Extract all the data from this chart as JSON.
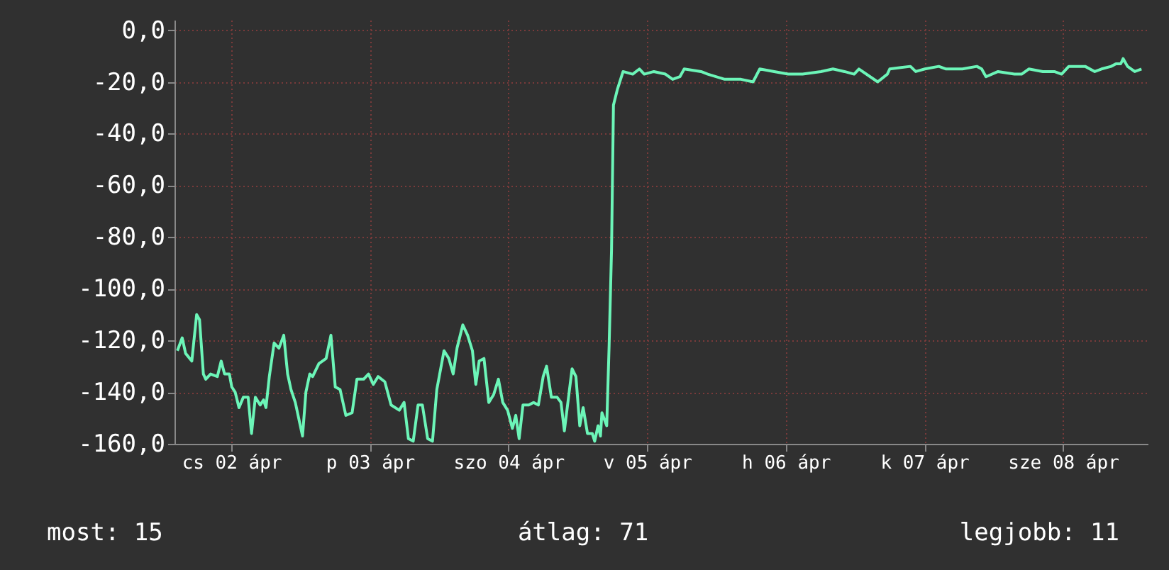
{
  "chart_data": {
    "type": "line",
    "annotations": [
      "most: 15",
      "átlag: 71",
      "legjobb: 11"
    ],
    "x": [
      "--04-02T02:40",
      "--04-02T03:30",
      "--04-02T04:05",
      "--04-02T05:10",
      "--04-02T06:00",
      "--04-02T06:30",
      "--04-02T07:10",
      "--04-02T07:35",
      "--04-02T08:25",
      "--04-02T09:35",
      "--04-02T10:15",
      "--04-02T10:50",
      "--04-02T11:40",
      "--04-02T12:05",
      "--04-02T12:40",
      "--04-02T13:20",
      "--04-02T14:05",
      "--04-02T14:55",
      "--04-02T15:30",
      "--04-02T16:10",
      "--04-02T17:00",
      "--04-02T17:35",
      "--04-02T18:00",
      "--04-02T18:35",
      "--04-02T19:25",
      "--04-02T20:15",
      "--04-02T21:05",
      "--04-02T21:45",
      "--04-02T22:20",
      "--04-02T23:05",
      "--04-03T00:20",
      "--04-03T00:55",
      "--04-03T01:35",
      "--04-03T02:05",
      "--04-03T03:10",
      "--04-03T04:25",
      "--04-03T05:15",
      "--04-03T06:00",
      "--04-03T06:50",
      "--04-03T07:50",
      "--04-03T08:55",
      "--04-03T09:45",
      "--04-03T10:55",
      "--04-03T11:45",
      "--04-03T12:35",
      "--04-03T13:25",
      "--04-03T14:35",
      "--04-03T15:40",
      "--04-03T17:05",
      "--04-03T17:55",
      "--04-03T18:40",
      "--04-03T19:30",
      "--04-03T20:20",
      "--04-03T21:05",
      "--04-03T22:00",
      "--04-03T22:50",
      "--04-03T23:35",
      "--04-04T00:50",
      "--04-04T01:40",
      "--04-04T02:25",
      "--04-04T03:05",
      "--04-04T04:05",
      "--04-04T04:55",
      "--04-04T05:45",
      "--04-04T06:20",
      "--04-04T06:55",
      "--04-04T07:45",
      "--04-04T08:35",
      "--04-04T09:25",
      "--04-04T10:15",
      "--04-04T11:00",
      "--04-04T11:50",
      "--04-04T12:40",
      "--04-04T13:15",
      "--04-04T13:50",
      "--04-04T14:30",
      "--04-04T15:30",
      "--04-04T16:20",
      "--04-04T17:10",
      "--04-04T18:00",
      "--04-04T18:35",
      "--04-04T19:25",
      "--04-04T20:25",
      "--04-04T21:05",
      "--04-04T21:40",
      "--04-04T22:30",
      "--04-04T23:00",
      "--04-04T23:40",
      "--04-05T00:20",
      "--04-05T00:55",
      "--04-05T01:40",
      "--04-05T02:30",
      "--04-05T02:55",
      "--04-05T03:30",
      "--04-05T03:55",
      "--04-05T04:10",
      "--04-05T05:00",
      "--04-05T05:25",
      "--04-05T05:50",
      "--04-05T06:10",
      "--04-05T06:50",
      "--04-05T07:50",
      "--04-05T09:30",
      "--04-05T10:40",
      "--04-05T11:30",
      "--04-05T13:10",
      "--04-05T15:10",
      "--04-05T16:25",
      "--04-05T17:40",
      "--04-05T18:25",
      "--04-05T21:20",
      "--04-05T22:30",
      "--04-06T01:25",
      "--04-06T04:15",
      "--04-06T06:20",
      "--04-06T07:30",
      "--04-06T10:00",
      "--04-06T12:25",
      "--04-06T14:55",
      "--04-06T18:05",
      "--04-06T20:10",
      "--04-06T22:10",
      "--04-06T23:50",
      "--04-07T00:40",
      "--04-07T03:55",
      "--04-07T05:35",
      "--04-07T06:00",
      "--04-07T09:35",
      "--04-07T10:30",
      "--04-07T12:05",
      "--04-07T14:30",
      "--04-07T15:45",
      "--04-07T18:35",
      "--04-07T21:05",
      "--04-07T21:55",
      "--04-07T22:40",
      "--04-08T00:45",
      "--04-08T03:35",
      "--04-08T04:50",
      "--04-08T06:05",
      "--04-08T08:30",
      "--04-08T10:30",
      "--04-08T11:45",
      "--04-08T13:00",
      "--04-08T15:00",
      "--04-08T15:50",
      "--04-08T17:30",
      "--04-08T18:40",
      "--04-08T20:20",
      "--04-08T21:10",
      "--04-08T22:00",
      "--04-08T22:25",
      "--04-08T23:10",
      "--04-09T00:25",
      "--04-09T01:35"
    ],
    "series": [
      {
        "color": "#6cf5b8",
        "values": [
          -124,
          -119,
          -125,
          -128,
          -110,
          -112,
          -133,
          -135,
          -133,
          -134,
          -128,
          -133,
          -133,
          -138,
          -140,
          -146,
          -142,
          -142,
          -156,
          -142,
          -145,
          -143,
          -146,
          -134,
          -121,
          -123,
          -118,
          -133,
          -139,
          -144,
          -157,
          -140,
          -133,
          -134,
          -129,
          -127,
          -118,
          -138,
          -139,
          -149,
          -148,
          -135,
          -135,
          -133,
          -137,
          -134,
          -136,
          -145,
          -147,
          -144,
          -158,
          -159,
          -145,
          -145,
          -158,
          -159,
          -139,
          -124,
          -127,
          -133,
          -123,
          -114,
          -118,
          -124,
          -137,
          -128,
          -127,
          -144,
          -141,
          -135,
          -144,
          -147,
          -154,
          -149,
          -158,
          -145,
          -145,
          -144,
          -145,
          -134,
          -130,
          -142,
          -142,
          -144,
          -155,
          -140,
          -131,
          -134,
          -153,
          -146,
          -156,
          -156,
          -159,
          -153,
          -157,
          -148,
          -153,
          -122,
          -85,
          -29,
          -23,
          -16,
          -17,
          -15,
          -17,
          -16,
          -17,
          -19,
          -18,
          -15,
          -16,
          -17,
          -19,
          -19,
          -20,
          -15,
          -16,
          -17,
          -17,
          -16,
          -15,
          -16,
          -17,
          -15,
          -20,
          -17,
          -15,
          -14,
          -16,
          -15,
          -14,
          -15,
          -15,
          -14,
          -15,
          -18,
          -16,
          -17,
          -17,
          -15,
          -16,
          -16,
          -17,
          -14,
          -14,
          -14,
          -16,
          -15,
          -14,
          -13,
          -13,
          -11,
          -14,
          -16,
          -15
        ]
      }
    ],
    "xlim": [
      "--04-02T02:10",
      "--04-09T02:40"
    ],
    "xticks": [
      {
        "value": "--04-02T12:00",
        "label": "cs 02 ápr"
      },
      {
        "value": "--04-03T12:00",
        "label": "p 03 ápr"
      },
      {
        "value": "--04-04T12:00",
        "label": "szo 04 ápr"
      },
      {
        "value": "--04-05T12:00",
        "label": "v 05 ápr"
      },
      {
        "value": "--04-06T12:00",
        "label": "h 06 ápr"
      },
      {
        "value": "--04-07T12:00",
        "label": "k 07 ápr"
      },
      {
        "value": "--04-08T12:00",
        "label": "sze 08 ápr"
      }
    ],
    "ylim": [
      -160,
      4
    ],
    "yticks": [
      {
        "value": -160,
        "label": "-160,0"
      },
      {
        "value": -140,
        "label": "-140,0"
      },
      {
        "value": -120,
        "label": "-120,0"
      },
      {
        "value": -100,
        "label": "-100,0"
      },
      {
        "value": -80,
        "label": "-80,0"
      },
      {
        "value": -60,
        "label": "-60,0"
      },
      {
        "value": -40,
        "label": "-40,0"
      },
      {
        "value": -20,
        "label": "-20,0"
      },
      {
        "value": 0,
        "label": "0,0"
      }
    ],
    "grid": true
  }
}
